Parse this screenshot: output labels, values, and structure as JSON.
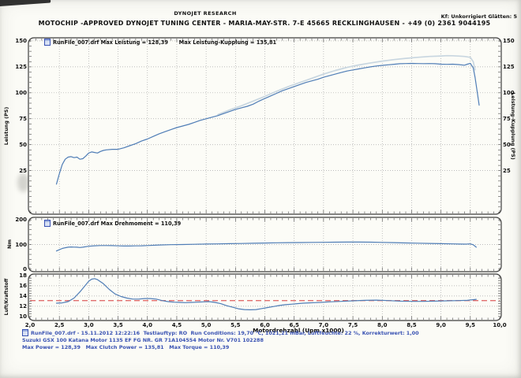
{
  "header": {
    "brand": "DYNOJET RESEARCH",
    "correction": "Kf: Unkorrigiert  Glätten: 5",
    "title": "MOTOCHIP -APPROVED   DYNOJET TUNING CENTER  -  MARIA-MAY-STR. 7-E 45665 RECKLINGHAUSEN  -  +49 (0) 2361 9044195"
  },
  "colors": {
    "curve_blue": "#4f7db6",
    "curve_light": "#c8d6e0",
    "red_dash": "#e06e6e",
    "grid": "#9e9e9e",
    "panel_border": "#3e3e3e",
    "panel_fill": "#fcfcf7",
    "footer_blue": "#3952b3"
  },
  "xaxis": {
    "title": "Motordrehzahl (Upm x1000)",
    "tick_values": [
      2.0,
      2.5,
      3.0,
      3.5,
      4.0,
      4.5,
      5.0,
      5.5,
      6.0,
      6.5,
      7.0,
      7.5,
      8.0,
      8.5,
      9.0,
      9.5,
      10.0
    ],
    "tick_labels": [
      "2,0",
      "2,5",
      "3,0",
      "3,5",
      "4,0",
      "4,5",
      "5,0",
      "5,5",
      "6,0",
      "6,5",
      "7,0",
      "7,5",
      "8,0",
      "8,5",
      "9,0",
      "9,5",
      "10,0"
    ]
  },
  "chart_data": [
    {
      "type": "line",
      "legend": "RunFile_007.drf Max Leistung = 128,39      Max Leistung-Kupplung = 135,81",
      "ylabel_left": "Leistung (PS)",
      "ylabel_right": "Leistung-Kupplung (PS)",
      "xlim": [
        2,
        10
      ],
      "ylim": [
        -17,
        153
      ],
      "yticks": [
        25,
        50,
        75,
        100,
        125,
        150
      ],
      "gridlines": [
        25,
        50,
        75,
        100,
        125,
        150
      ],
      "minor_y": 5,
      "series": [
        {
          "name": "Leistung-Kupplung",
          "color_key": "curve_light",
          "width": 1.7,
          "points": [
            [
              5.2,
              79
            ],
            [
              5.4,
              83.5
            ],
            [
              5.6,
              87.5
            ],
            [
              5.8,
              92
            ],
            [
              6.0,
              96.5
            ],
            [
              6.2,
              101.5
            ],
            [
              6.4,
              106
            ],
            [
              6.6,
              110
            ],
            [
              6.8,
              114
            ],
            [
              7.0,
              118
            ],
            [
              7.2,
              121.5
            ],
            [
              7.4,
              124.5
            ],
            [
              7.6,
              126.8
            ],
            [
              7.8,
              128.8
            ],
            [
              8.0,
              130.5
            ],
            [
              8.2,
              132
            ],
            [
              8.4,
              133.2
            ],
            [
              8.6,
              134.2
            ],
            [
              8.8,
              135
            ],
            [
              9.0,
              135.5
            ],
            [
              9.1,
              135.8
            ],
            [
              9.2,
              135.7
            ],
            [
              9.3,
              135.4
            ],
            [
              9.4,
              135
            ],
            [
              9.5,
              134.2
            ],
            [
              9.55,
              130
            ],
            [
              9.58,
              122
            ]
          ]
        },
        {
          "name": "Leistung",
          "color_key": "curve_blue",
          "width": 1.2,
          "points": [
            [
              2.45,
              12
            ],
            [
              2.5,
              22
            ],
            [
              2.55,
              31
            ],
            [
              2.6,
              36
            ],
            [
              2.65,
              38
            ],
            [
              2.7,
              38.5
            ],
            [
              2.75,
              37.5
            ],
            [
              2.8,
              38
            ],
            [
              2.85,
              36
            ],
            [
              2.9,
              36.5
            ],
            [
              2.95,
              39
            ],
            [
              3.0,
              42
            ],
            [
              3.05,
              43
            ],
            [
              3.1,
              42.5
            ],
            [
              3.15,
              42
            ],
            [
              3.2,
              43.5
            ],
            [
              3.25,
              44.5
            ],
            [
              3.3,
              45
            ],
            [
              3.4,
              45.5
            ],
            [
              3.5,
              45.5
            ],
            [
              3.6,
              47
            ],
            [
              3.7,
              49
            ],
            [
              3.8,
              51
            ],
            [
              3.9,
              53.5
            ],
            [
              4.0,
              55.5
            ],
            [
              4.1,
              58
            ],
            [
              4.2,
              60.5
            ],
            [
              4.3,
              62.5
            ],
            [
              4.4,
              64.5
            ],
            [
              4.5,
              66.5
            ],
            [
              4.6,
              68
            ],
            [
              4.7,
              69.5
            ],
            [
              4.8,
              71.5
            ],
            [
              4.9,
              73.5
            ],
            [
              5.0,
              75
            ],
            [
              5.1,
              76.5
            ],
            [
              5.2,
              78
            ],
            [
              5.3,
              80
            ],
            [
              5.4,
              82
            ],
            [
              5.5,
              84
            ],
            [
              5.6,
              85.5
            ],
            [
              5.7,
              87
            ],
            [
              5.8,
              89
            ],
            [
              5.9,
              92
            ],
            [
              6.0,
              94.5
            ],
            [
              6.1,
              97
            ],
            [
              6.2,
              99.5
            ],
            [
              6.3,
              102
            ],
            [
              6.4,
              104
            ],
            [
              6.5,
              106
            ],
            [
              6.6,
              108
            ],
            [
              6.7,
              110
            ],
            [
              6.8,
              111.5
            ],
            [
              6.9,
              113
            ],
            [
              7.0,
              115
            ],
            [
              7.1,
              116.5
            ],
            [
              7.2,
              118
            ],
            [
              7.3,
              119.5
            ],
            [
              7.4,
              121
            ],
            [
              7.5,
              122
            ],
            [
              7.6,
              123
            ],
            [
              7.7,
              124
            ],
            [
              7.8,
              125
            ],
            [
              7.9,
              125.8
            ],
            [
              8.0,
              126.4
            ],
            [
              8.1,
              127
            ],
            [
              8.2,
              127.5
            ],
            [
              8.3,
              128
            ],
            [
              8.4,
              128.2
            ],
            [
              8.5,
              128.3
            ],
            [
              8.6,
              128.2
            ],
            [
              8.7,
              128.1
            ],
            [
              8.8,
              128.2
            ],
            [
              8.9,
              128
            ],
            [
              9.0,
              127.6
            ],
            [
              9.1,
              127.4
            ],
            [
              9.2,
              127.6
            ],
            [
              9.3,
              127.2
            ],
            [
              9.4,
              126.6
            ],
            [
              9.45,
              127.6
            ],
            [
              9.5,
              128.4
            ],
            [
              9.55,
              124
            ],
            [
              9.58,
              115
            ],
            [
              9.62,
              100
            ],
            [
              9.65,
              88
            ]
          ]
        }
      ]
    },
    {
      "type": "line",
      "legend": "RunFile_007.drf Max Drehmoment = 110,39",
      "ylabel_left": "Nm",
      "xlim": [
        2,
        10
      ],
      "ylim": [
        -10,
        210
      ],
      "yticks": [
        0,
        100,
        200
      ],
      "gridlines": [
        100
      ],
      "minor_y": 20,
      "series": [
        {
          "name": "Drehmoment",
          "color_key": "curve_blue",
          "width": 1.2,
          "points": [
            [
              2.45,
              74
            ],
            [
              2.5,
              79
            ],
            [
              2.55,
              84
            ],
            [
              2.6,
              87
            ],
            [
              2.65,
              89
            ],
            [
              2.7,
              90
            ],
            [
              2.75,
              89.5
            ],
            [
              2.8,
              89
            ],
            [
              2.85,
              88
            ],
            [
              2.9,
              89
            ],
            [
              3.0,
              93
            ],
            [
              3.1,
              95
            ],
            [
              3.2,
              96
            ],
            [
              3.3,
              96
            ],
            [
              3.4,
              95.5
            ],
            [
              3.5,
              94.5
            ],
            [
              3.6,
              94
            ],
            [
              3.7,
              94
            ],
            [
              3.8,
              94.5
            ],
            [
              3.9,
              95
            ],
            [
              4.0,
              96
            ],
            [
              4.2,
              98
            ],
            [
              4.4,
              99.5
            ],
            [
              4.6,
              100
            ],
            [
              4.8,
              101
            ],
            [
              5.0,
              102
            ],
            [
              5.2,
              102.5
            ],
            [
              5.4,
              103.5
            ],
            [
              5.6,
              104
            ],
            [
              5.8,
              105
            ],
            [
              6.0,
              106
            ],
            [
              6.2,
              107
            ],
            [
              6.4,
              107.5
            ],
            [
              6.6,
              108
            ],
            [
              6.8,
              108.5
            ],
            [
              7.0,
              109
            ],
            [
              7.2,
              109.5
            ],
            [
              7.4,
              110
            ],
            [
              7.6,
              110
            ],
            [
              7.8,
              109.5
            ],
            [
              8.0,
              108.5
            ],
            [
              8.2,
              107.5
            ],
            [
              8.4,
              106.5
            ],
            [
              8.6,
              105.5
            ],
            [
              8.8,
              104.5
            ],
            [
              9.0,
              103.5
            ],
            [
              9.2,
              102.5
            ],
            [
              9.3,
              102
            ],
            [
              9.4,
              101.5
            ],
            [
              9.45,
              102
            ],
            [
              9.5,
              102.5
            ],
            [
              9.55,
              99
            ],
            [
              9.6,
              89
            ]
          ]
        }
      ]
    },
    {
      "type": "line",
      "legend": "",
      "ylabel_left": "Luft/Kraftstoff",
      "xlim": [
        2,
        10
      ],
      "ylim": [
        9.2,
        18.3
      ],
      "yticks": [
        10,
        12,
        14,
        16,
        18
      ],
      "gridlines": [
        12,
        14,
        16
      ],
      "minor_y": 0.5,
      "reference_line": 13.1,
      "series": [
        {
          "name": "Luft/Kraftstoff",
          "color_key": "curve_blue",
          "width": 1.2,
          "points": [
            [
              2.45,
              12.6
            ],
            [
              2.55,
              12.65
            ],
            [
              2.65,
              12.9
            ],
            [
              2.75,
              13.6
            ],
            [
              2.85,
              14.8
            ],
            [
              2.95,
              16.2
            ],
            [
              3.0,
              16.9
            ],
            [
              3.05,
              17.3
            ],
            [
              3.1,
              17.4
            ],
            [
              3.15,
              17.2
            ],
            [
              3.25,
              16.4
            ],
            [
              3.35,
              15.3
            ],
            [
              3.45,
              14.4
            ],
            [
              3.55,
              13.9
            ],
            [
              3.65,
              13.6
            ],
            [
              3.75,
              13.4
            ],
            [
              3.85,
              13.4
            ],
            [
              3.95,
              13.5
            ],
            [
              4.05,
              13.5
            ],
            [
              4.15,
              13.4
            ],
            [
              4.25,
              13.1
            ],
            [
              4.35,
              12.9
            ],
            [
              4.45,
              12.8
            ],
            [
              4.55,
              12.75
            ],
            [
              4.65,
              12.7
            ],
            [
              4.75,
              12.75
            ],
            [
              4.85,
              12.8
            ],
            [
              4.95,
              12.85
            ],
            [
              5.05,
              12.9
            ],
            [
              5.15,
              12.75
            ],
            [
              5.25,
              12.5
            ],
            [
              5.35,
              12.1
            ],
            [
              5.45,
              11.8
            ],
            [
              5.55,
              11.5
            ],
            [
              5.65,
              11.35
            ],
            [
              5.75,
              11.3
            ],
            [
              5.85,
              11.35
            ],
            [
              5.95,
              11.55
            ],
            [
              6.05,
              11.75
            ],
            [
              6.15,
              11.95
            ],
            [
              6.25,
              12.15
            ],
            [
              6.35,
              12.3
            ],
            [
              6.45,
              12.4
            ],
            [
              6.55,
              12.5
            ],
            [
              6.65,
              12.6
            ],
            [
              6.75,
              12.65
            ],
            [
              6.85,
              12.7
            ],
            [
              6.95,
              12.75
            ],
            [
              7.1,
              12.85
            ],
            [
              7.3,
              12.95
            ],
            [
              7.5,
              13.05
            ],
            [
              7.7,
              13.15
            ],
            [
              7.9,
              13.2
            ],
            [
              8.1,
              13.1
            ],
            [
              8.3,
              13.0
            ],
            [
              8.5,
              12.95
            ],
            [
              8.7,
              12.95
            ],
            [
              8.9,
              13.0
            ],
            [
              9.1,
              13.05
            ],
            [
              9.3,
              13.1
            ],
            [
              9.45,
              13.15
            ],
            [
              9.6,
              13.35
            ]
          ]
        }
      ]
    }
  ],
  "footer": {
    "line1": "RunFile_007.drf - 15.11.2012 12:22:16  Testlauftyp: RO  Run Conditions: 19,70 °C, 1021,21 mBar, Luftfeuchte: 22 %, Korrekturwert: 1,00",
    "line2": "Suzuki GSX 100 Katana Motor 1135 EF FG NR. GR 71A104554 Motor Nr. V701 102288",
    "line3": "Max Power = 128,39   Max Clutch Power = 135,81   Max Torque = 110,39"
  }
}
